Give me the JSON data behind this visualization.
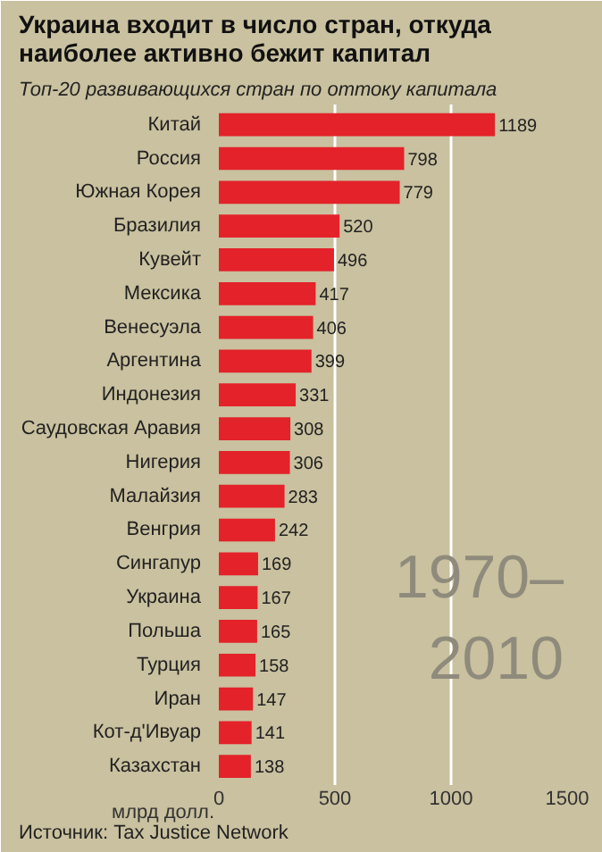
{
  "chart_data": {
    "type": "bar",
    "orientation": "horizontal",
    "title": "Украина входит в число стран, откуда\nнаиболее активно бежит капитал",
    "subtitle": "Топ-20 развивающихся стран по оттоку капитала",
    "xlabel": "млрд долл.",
    "categories": [
      "Китай",
      "Россия",
      "Южная Корея",
      "Бразилия",
      "Кувейт",
      "Мексика",
      "Венесуэла",
      "Аргентина",
      "Индонезия",
      "Саудовская Аравия",
      "Нигерия",
      "Малайзия",
      "Венгрия",
      "Сингапур",
      "Украина",
      "Польша",
      "Турция",
      "Иран",
      "Кот-д'Ивуар",
      "Казахстан"
    ],
    "values": [
      1189,
      798,
      779,
      520,
      496,
      417,
      406,
      399,
      331,
      308,
      306,
      283,
      242,
      169,
      167,
      165,
      158,
      147,
      141,
      138
    ],
    "color": "#e3222a",
    "data_labels": true,
    "xlim": [
      0,
      1500
    ],
    "xticks": [
      0,
      500,
      1000,
      1500
    ],
    "grid": "x",
    "annotations": [
      "1970–\n2010",
      "Источник: Tax Justice Network"
    ]
  }
}
